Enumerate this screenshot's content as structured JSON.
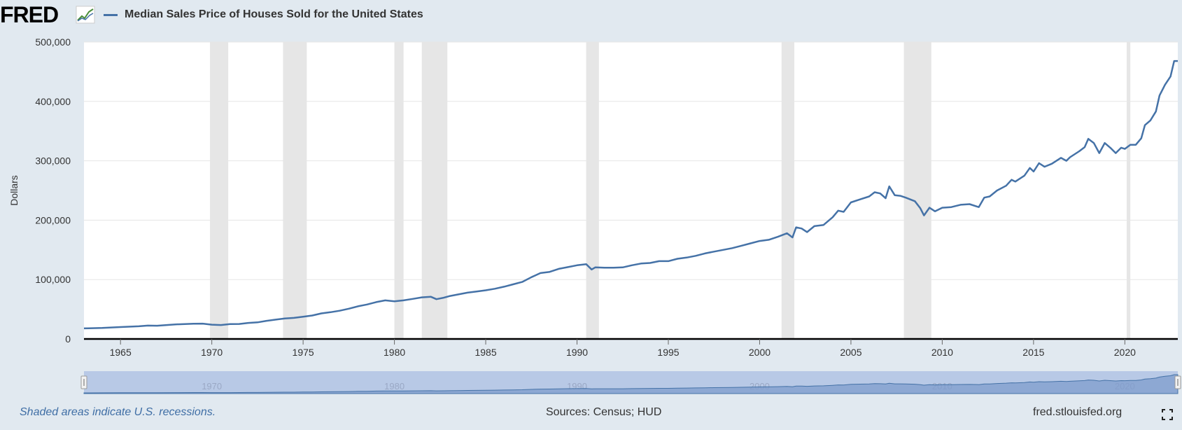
{
  "header": {
    "logo_text": "FRED",
    "series_label": "Median Sales Price of Houses Sold for the United States"
  },
  "footer": {
    "recession_note": "Shaded areas indicate U.S. recessions.",
    "sources": "Sources: Census; HUD",
    "site": "fred.stlouisfed.org"
  },
  "colors": {
    "line": "#4572a7",
    "recession": "#e6e6e6",
    "background": "#e1e9f0",
    "plot": "#ffffff"
  },
  "chart_data": {
    "type": "line",
    "title": "",
    "xlabel": "",
    "ylabel": "Dollars",
    "xlim": [
      1963.0,
      2022.9
    ],
    "ylim": [
      0,
      500000
    ],
    "grid": true,
    "legend": "top-left",
    "y_ticks": [
      0,
      100000,
      200000,
      300000,
      400000,
      500000
    ],
    "y_tick_labels": [
      "0",
      "100,000",
      "200,000",
      "300,000",
      "400,000",
      "500,000"
    ],
    "x_ticks": [
      1965,
      1970,
      1975,
      1980,
      1985,
      1990,
      1995,
      2000,
      2005,
      2010,
      2015,
      2020
    ],
    "x_tick_labels": [
      "1965",
      "1970",
      "1975",
      "1980",
      "1985",
      "1990",
      "1995",
      "2000",
      "2005",
      "2010",
      "2015",
      "2020"
    ],
    "navigator_labels": [
      "1970",
      "1980",
      "1990",
      "2000",
      "2010",
      "2020"
    ],
    "recessions": [
      [
        1969.9,
        1970.9
      ],
      [
        1973.9,
        1975.2
      ],
      [
        1980.0,
        1980.5
      ],
      [
        1981.5,
        1982.9
      ],
      [
        1990.5,
        1991.2
      ],
      [
        2001.2,
        2001.9
      ],
      [
        2007.9,
        2009.4
      ],
      [
        2020.1,
        2020.3
      ]
    ],
    "series": [
      {
        "name": "Median Sales Price of Houses Sold for the United States",
        "points": [
          [
            1963.0,
            17800
          ],
          [
            1964.0,
            18500
          ],
          [
            1965.0,
            20000
          ],
          [
            1966.0,
            21400
          ],
          [
            1966.5,
            22500
          ],
          [
            1967.0,
            22300
          ],
          [
            1968.0,
            24500
          ],
          [
            1969.0,
            25600
          ],
          [
            1969.5,
            25800
          ],
          [
            1970.0,
            24000
          ],
          [
            1970.5,
            23500
          ],
          [
            1971.0,
            25000
          ],
          [
            1971.5,
            25200
          ],
          [
            1972.0,
            27000
          ],
          [
            1972.5,
            28000
          ],
          [
            1973.0,
            30500
          ],
          [
            1973.5,
            32500
          ],
          [
            1974.0,
            34500
          ],
          [
            1974.5,
            35500
          ],
          [
            1975.0,
            37500
          ],
          [
            1975.5,
            39500
          ],
          [
            1976.0,
            43000
          ],
          [
            1976.5,
            45000
          ],
          [
            1977.0,
            47500
          ],
          [
            1977.5,
            51000
          ],
          [
            1978.0,
            55000
          ],
          [
            1978.5,
            58000
          ],
          [
            1979.0,
            62000
          ],
          [
            1979.5,
            65000
          ],
          [
            1980.0,
            63500
          ],
          [
            1980.5,
            65000
          ],
          [
            1981.0,
            67500
          ],
          [
            1981.5,
            70000
          ],
          [
            1982.0,
            71000
          ],
          [
            1982.3,
            67000
          ],
          [
            1982.7,
            69500
          ],
          [
            1983.0,
            72000
          ],
          [
            1983.5,
            75000
          ],
          [
            1984.0,
            78000
          ],
          [
            1984.5,
            80000
          ],
          [
            1985.0,
            82000
          ],
          [
            1985.5,
            84500
          ],
          [
            1986.0,
            88000
          ],
          [
            1986.5,
            92000
          ],
          [
            1987.0,
            96000
          ],
          [
            1987.5,
            104000
          ],
          [
            1988.0,
            111000
          ],
          [
            1988.5,
            113000
          ],
          [
            1989.0,
            118000
          ],
          [
            1989.5,
            121000
          ],
          [
            1990.0,
            124000
          ],
          [
            1990.5,
            126000
          ],
          [
            1990.8,
            117000
          ],
          [
            1991.0,
            120500
          ],
          [
            1991.5,
            120000
          ],
          [
            1992.0,
            120000
          ],
          [
            1992.5,
            120500
          ],
          [
            1993.0,
            124000
          ],
          [
            1993.5,
            127000
          ],
          [
            1994.0,
            128000
          ],
          [
            1994.5,
            131000
          ],
          [
            1995.0,
            131000
          ],
          [
            1995.5,
            135000
          ],
          [
            1996.0,
            137000
          ],
          [
            1996.5,
            140000
          ],
          [
            1997.0,
            144000
          ],
          [
            1997.5,
            147000
          ],
          [
            1998.0,
            150000
          ],
          [
            1998.5,
            153000
          ],
          [
            1999.0,
            157000
          ],
          [
            1999.5,
            161000
          ],
          [
            2000.0,
            165000
          ],
          [
            2000.5,
            167000
          ],
          [
            2001.0,
            172000
          ],
          [
            2001.5,
            178000
          ],
          [
            2001.8,
            171000
          ],
          [
            2002.0,
            188000
          ],
          [
            2002.3,
            186000
          ],
          [
            2002.6,
            180000
          ],
          [
            2003.0,
            190000
          ],
          [
            2003.5,
            192000
          ],
          [
            2004.0,
            205000
          ],
          [
            2004.3,
            216000
          ],
          [
            2004.6,
            214000
          ],
          [
            2005.0,
            230000
          ],
          [
            2005.5,
            235000
          ],
          [
            2006.0,
            240000
          ],
          [
            2006.3,
            247000
          ],
          [
            2006.6,
            245000
          ],
          [
            2006.9,
            237000
          ],
          [
            2007.1,
            257000
          ],
          [
            2007.4,
            242000
          ],
          [
            2007.7,
            241000
          ],
          [
            2008.0,
            238000
          ],
          [
            2008.5,
            232000
          ],
          [
            2008.8,
            220000
          ],
          [
            2009.0,
            208000
          ],
          [
            2009.3,
            221000
          ],
          [
            2009.6,
            215000
          ],
          [
            2010.0,
            221000
          ],
          [
            2010.5,
            222000
          ],
          [
            2011.0,
            226000
          ],
          [
            2011.5,
            227000
          ],
          [
            2012.0,
            222000
          ],
          [
            2012.3,
            238000
          ],
          [
            2012.6,
            240000
          ],
          [
            2013.0,
            250000
          ],
          [
            2013.5,
            258000
          ],
          [
            2013.8,
            268000
          ],
          [
            2014.0,
            265000
          ],
          [
            2014.5,
            275000
          ],
          [
            2014.8,
            288000
          ],
          [
            2015.0,
            282000
          ],
          [
            2015.3,
            296000
          ],
          [
            2015.6,
            290000
          ],
          [
            2016.0,
            295000
          ],
          [
            2016.5,
            305000
          ],
          [
            2016.8,
            300000
          ],
          [
            2017.0,
            306000
          ],
          [
            2017.5,
            316000
          ],
          [
            2017.8,
            323000
          ],
          [
            2018.0,
            337000
          ],
          [
            2018.3,
            330000
          ],
          [
            2018.6,
            313000
          ],
          [
            2018.9,
            330000
          ],
          [
            2019.2,
            322000
          ],
          [
            2019.5,
            313000
          ],
          [
            2019.8,
            322000
          ],
          [
            2020.0,
            320000
          ],
          [
            2020.3,
            327000
          ],
          [
            2020.6,
            327000
          ],
          [
            2020.9,
            338000
          ],
          [
            2021.1,
            360000
          ],
          [
            2021.4,
            368000
          ],
          [
            2021.7,
            383000
          ],
          [
            2021.9,
            410000
          ],
          [
            2022.2,
            428000
          ],
          [
            2022.5,
            442000
          ],
          [
            2022.7,
            468000
          ],
          [
            2022.9,
            468000
          ]
        ]
      }
    ]
  }
}
